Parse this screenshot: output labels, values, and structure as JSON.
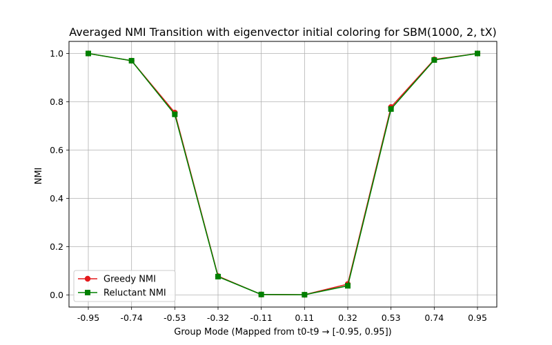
{
  "chart_data": {
    "type": "line",
    "title": "Averaged NMI Transition with eigenvector initial coloring for SBM(1000, 2, tX)",
    "xlabel": "Group Mode (Mapped from t0-t9 → [-0.95, 0.95])",
    "ylabel": "NMI",
    "categories": [
      "-0.95",
      "-0.74",
      "-0.53",
      "-0.32",
      "-0.11",
      "0.11",
      "0.32",
      "0.53",
      "0.74",
      "0.95"
    ],
    "ylim": [
      -0.05,
      1.05
    ],
    "yticks": [
      "0.0",
      "0.2",
      "0.4",
      "0.6",
      "0.8",
      "1.0"
    ],
    "ytick_values": [
      0.0,
      0.2,
      0.4,
      0.6,
      0.8,
      1.0
    ],
    "grid": true,
    "legend_position": "lower-left",
    "series": [
      {
        "name": "Greedy NMI",
        "color": "#e41a1c",
        "marker": "circle",
        "values": [
          1.0,
          0.97,
          0.755,
          0.078,
          0.002,
          0.001,
          0.045,
          0.778,
          0.975,
          1.0
        ]
      },
      {
        "name": "Reluctant NMI",
        "color": "#008000",
        "marker": "square",
        "values": [
          1.0,
          0.97,
          0.748,
          0.076,
          0.002,
          0.001,
          0.038,
          0.77,
          0.973,
          1.0
        ]
      }
    ]
  }
}
